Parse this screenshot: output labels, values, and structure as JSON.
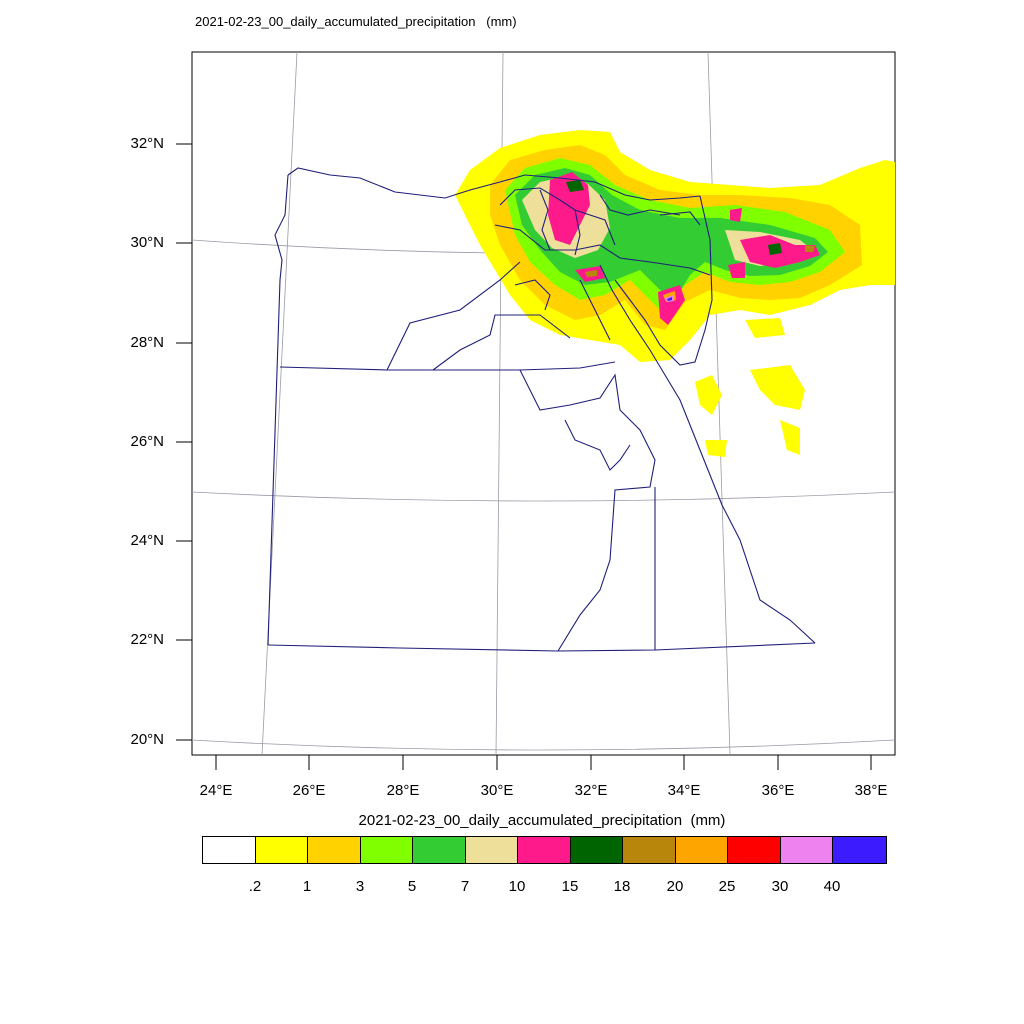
{
  "title": "2021-02-23_00_daily_accumulated_precipitation   (mm)",
  "map": {
    "lat_labels": [
      "32°N",
      "30°N",
      "28°N",
      "26°N",
      "24°N",
      "22°N",
      "20°N"
    ],
    "lon_labels": [
      "24°E",
      "26°E",
      "28°E",
      "30°E",
      "32°E",
      "34°E",
      "36°E",
      "38°E"
    ],
    "region": "Egypt governorates",
    "precip_focus": "northern Nile Delta, Sinai and Levant coast"
  },
  "colorbar": {
    "title": "2021-02-23_00_daily_accumulated_precipitation  (mm)",
    "colors": [
      "#ffffff",
      "#ffff00",
      "#ffd200",
      "#80ff00",
      "#33cc33",
      "#eee09a",
      "#ff1a8c",
      "#006400",
      "#b8860b",
      "#ffa500",
      "#ff0000",
      "#ee82ee",
      "#3c1cff"
    ],
    "labels": [
      ".2",
      "1",
      "3",
      "5",
      "7",
      "10",
      "15",
      "18",
      "20",
      "25",
      "30",
      "40"
    ]
  }
}
